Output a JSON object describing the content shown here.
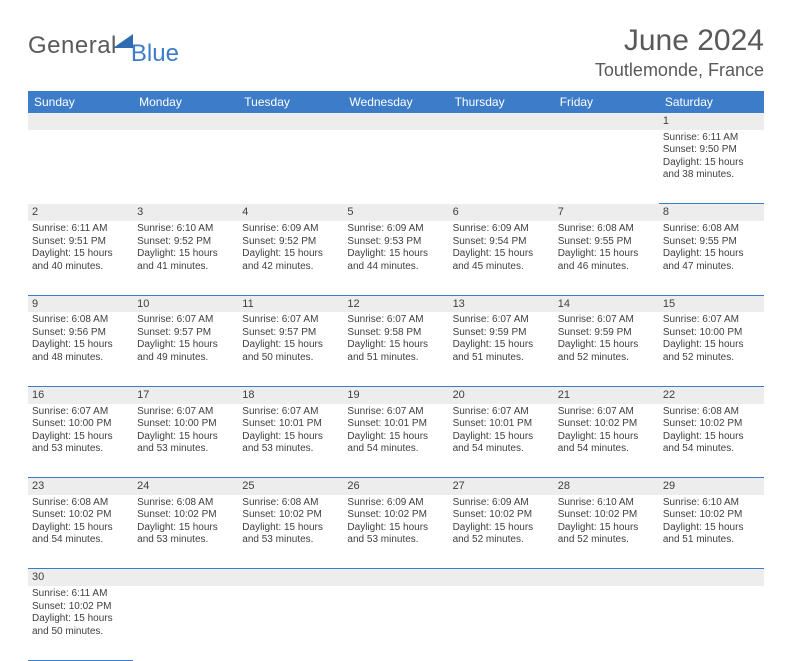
{
  "logo": {
    "word1": "General",
    "word2": "Blue"
  },
  "title": "June 2024",
  "location": "Toutlemonde, France",
  "colors": {
    "header_blue": "#3d7cc9",
    "light_gray": "#ededed",
    "cell_border": "#3d7cc9",
    "text_dark": "#595959",
    "body_text": "#404040"
  },
  "day_headers": [
    "Sunday",
    "Monday",
    "Tuesday",
    "Wednesday",
    "Thursday",
    "Friday",
    "Saturday"
  ],
  "weeks": [
    {
      "nums": [
        "",
        "",
        "",
        "",
        "",
        "",
        "1"
      ],
      "cells": [
        null,
        null,
        null,
        null,
        null,
        null,
        {
          "sunrise": "Sunrise: 6:11 AM",
          "sunset": "Sunset: 9:50 PM",
          "day1": "Daylight: 15 hours",
          "day2": "and 38 minutes."
        }
      ]
    },
    {
      "nums": [
        "2",
        "3",
        "4",
        "5",
        "6",
        "7",
        "8"
      ],
      "cells": [
        {
          "sunrise": "Sunrise: 6:11 AM",
          "sunset": "Sunset: 9:51 PM",
          "day1": "Daylight: 15 hours",
          "day2": "and 40 minutes."
        },
        {
          "sunrise": "Sunrise: 6:10 AM",
          "sunset": "Sunset: 9:52 PM",
          "day1": "Daylight: 15 hours",
          "day2": "and 41 minutes."
        },
        {
          "sunrise": "Sunrise: 6:09 AM",
          "sunset": "Sunset: 9:52 PM",
          "day1": "Daylight: 15 hours",
          "day2": "and 42 minutes."
        },
        {
          "sunrise": "Sunrise: 6:09 AM",
          "sunset": "Sunset: 9:53 PM",
          "day1": "Daylight: 15 hours",
          "day2": "and 44 minutes."
        },
        {
          "sunrise": "Sunrise: 6:09 AM",
          "sunset": "Sunset: 9:54 PM",
          "day1": "Daylight: 15 hours",
          "day2": "and 45 minutes."
        },
        {
          "sunrise": "Sunrise: 6:08 AM",
          "sunset": "Sunset: 9:55 PM",
          "day1": "Daylight: 15 hours",
          "day2": "and 46 minutes."
        },
        {
          "sunrise": "Sunrise: 6:08 AM",
          "sunset": "Sunset: 9:55 PM",
          "day1": "Daylight: 15 hours",
          "day2": "and 47 minutes."
        }
      ]
    },
    {
      "nums": [
        "9",
        "10",
        "11",
        "12",
        "13",
        "14",
        "15"
      ],
      "cells": [
        {
          "sunrise": "Sunrise: 6:08 AM",
          "sunset": "Sunset: 9:56 PM",
          "day1": "Daylight: 15 hours",
          "day2": "and 48 minutes."
        },
        {
          "sunrise": "Sunrise: 6:07 AM",
          "sunset": "Sunset: 9:57 PM",
          "day1": "Daylight: 15 hours",
          "day2": "and 49 minutes."
        },
        {
          "sunrise": "Sunrise: 6:07 AM",
          "sunset": "Sunset: 9:57 PM",
          "day1": "Daylight: 15 hours",
          "day2": "and 50 minutes."
        },
        {
          "sunrise": "Sunrise: 6:07 AM",
          "sunset": "Sunset: 9:58 PM",
          "day1": "Daylight: 15 hours",
          "day2": "and 51 minutes."
        },
        {
          "sunrise": "Sunrise: 6:07 AM",
          "sunset": "Sunset: 9:59 PM",
          "day1": "Daylight: 15 hours",
          "day2": "and 51 minutes."
        },
        {
          "sunrise": "Sunrise: 6:07 AM",
          "sunset": "Sunset: 9:59 PM",
          "day1": "Daylight: 15 hours",
          "day2": "and 52 minutes."
        },
        {
          "sunrise": "Sunrise: 6:07 AM",
          "sunset": "Sunset: 10:00 PM",
          "day1": "Daylight: 15 hours",
          "day2": "and 52 minutes."
        }
      ]
    },
    {
      "nums": [
        "16",
        "17",
        "18",
        "19",
        "20",
        "21",
        "22"
      ],
      "cells": [
        {
          "sunrise": "Sunrise: 6:07 AM",
          "sunset": "Sunset: 10:00 PM",
          "day1": "Daylight: 15 hours",
          "day2": "and 53 minutes."
        },
        {
          "sunrise": "Sunrise: 6:07 AM",
          "sunset": "Sunset: 10:00 PM",
          "day1": "Daylight: 15 hours",
          "day2": "and 53 minutes."
        },
        {
          "sunrise": "Sunrise: 6:07 AM",
          "sunset": "Sunset: 10:01 PM",
          "day1": "Daylight: 15 hours",
          "day2": "and 53 minutes."
        },
        {
          "sunrise": "Sunrise: 6:07 AM",
          "sunset": "Sunset: 10:01 PM",
          "day1": "Daylight: 15 hours",
          "day2": "and 54 minutes."
        },
        {
          "sunrise": "Sunrise: 6:07 AM",
          "sunset": "Sunset: 10:01 PM",
          "day1": "Daylight: 15 hours",
          "day2": "and 54 minutes."
        },
        {
          "sunrise": "Sunrise: 6:07 AM",
          "sunset": "Sunset: 10:02 PM",
          "day1": "Daylight: 15 hours",
          "day2": "and 54 minutes."
        },
        {
          "sunrise": "Sunrise: 6:08 AM",
          "sunset": "Sunset: 10:02 PM",
          "day1": "Daylight: 15 hours",
          "day2": "and 54 minutes."
        }
      ]
    },
    {
      "nums": [
        "23",
        "24",
        "25",
        "26",
        "27",
        "28",
        "29"
      ],
      "cells": [
        {
          "sunrise": "Sunrise: 6:08 AM",
          "sunset": "Sunset: 10:02 PM",
          "day1": "Daylight: 15 hours",
          "day2": "and 54 minutes."
        },
        {
          "sunrise": "Sunrise: 6:08 AM",
          "sunset": "Sunset: 10:02 PM",
          "day1": "Daylight: 15 hours",
          "day2": "and 53 minutes."
        },
        {
          "sunrise": "Sunrise: 6:08 AM",
          "sunset": "Sunset: 10:02 PM",
          "day1": "Daylight: 15 hours",
          "day2": "and 53 minutes."
        },
        {
          "sunrise": "Sunrise: 6:09 AM",
          "sunset": "Sunset: 10:02 PM",
          "day1": "Daylight: 15 hours",
          "day2": "and 53 minutes."
        },
        {
          "sunrise": "Sunrise: 6:09 AM",
          "sunset": "Sunset: 10:02 PM",
          "day1": "Daylight: 15 hours",
          "day2": "and 52 minutes."
        },
        {
          "sunrise": "Sunrise: 6:10 AM",
          "sunset": "Sunset: 10:02 PM",
          "day1": "Daylight: 15 hours",
          "day2": "and 52 minutes."
        },
        {
          "sunrise": "Sunrise: 6:10 AM",
          "sunset": "Sunset: 10:02 PM",
          "day1": "Daylight: 15 hours",
          "day2": "and 51 minutes."
        }
      ]
    },
    {
      "nums": [
        "30",
        "",
        "",
        "",
        "",
        "",
        ""
      ],
      "cells": [
        {
          "sunrise": "Sunrise: 6:11 AM",
          "sunset": "Sunset: 10:02 PM",
          "day1": "Daylight: 15 hours",
          "day2": "and 50 minutes."
        },
        null,
        null,
        null,
        null,
        null,
        null
      ]
    }
  ]
}
